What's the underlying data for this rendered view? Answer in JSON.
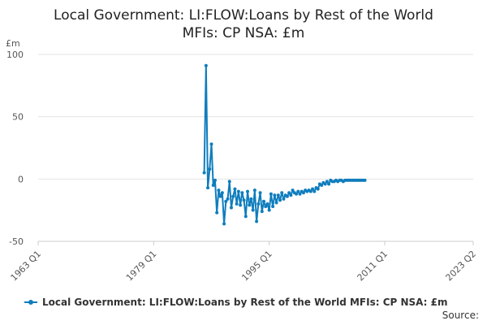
{
  "chart_data": {
    "type": "line",
    "title_lines": [
      "Local Government: LI:FLOW:Loans by Rest of the World",
      "MFIs: CP NSA: £m"
    ],
    "ylabel": "£m",
    "ylim": [
      -50,
      100
    ],
    "yticks": [
      "100",
      "50",
      "0",
      "-50"
    ],
    "xlim": [
      "1963 Q1",
      "2023 Q2"
    ],
    "xticks": [
      "1963 Q1",
      "1979 Q1",
      "1995 Q1",
      "2011 Q1",
      "2023 Q2"
    ],
    "grid": "horizontal",
    "legend_position": "bottom",
    "color": "#0f7dbd",
    "series": [
      {
        "name": "Local Government: LI:FLOW:Loans by Rest of the World MFIs: CP NSA: £m",
        "x": [
          "1986 Q1",
          "1986 Q2",
          "1986 Q3",
          "1986 Q4",
          "1987 Q1",
          "1987 Q2",
          "1987 Q3",
          "1987 Q4",
          "1988 Q1",
          "1988 Q2",
          "1988 Q3",
          "1988 Q4",
          "1989 Q1",
          "1989 Q2",
          "1989 Q3",
          "1989 Q4",
          "1990 Q1",
          "1990 Q2",
          "1990 Q3",
          "1990 Q4",
          "1991 Q1",
          "1991 Q2",
          "1991 Q3",
          "1991 Q4",
          "1992 Q1",
          "1992 Q2",
          "1992 Q3",
          "1992 Q4",
          "1993 Q1",
          "1993 Q2",
          "1993 Q3",
          "1993 Q4",
          "1994 Q1",
          "1994 Q2",
          "1994 Q3",
          "1994 Q4",
          "1995 Q1",
          "1995 Q2",
          "1995 Q3",
          "1995 Q4",
          "1996 Q1",
          "1996 Q2",
          "1996 Q3",
          "1996 Q4",
          "1997 Q1",
          "1997 Q2",
          "1997 Q3",
          "1997 Q4",
          "1998 Q1",
          "1998 Q2",
          "1998 Q3",
          "1998 Q4",
          "1999 Q1",
          "1999 Q2",
          "1999 Q3",
          "1999 Q4",
          "2000 Q1",
          "2000 Q2",
          "2000 Q3",
          "2000 Q4",
          "2001 Q1",
          "2001 Q2",
          "2001 Q3",
          "2001 Q4",
          "2002 Q1",
          "2002 Q2",
          "2002 Q3",
          "2002 Q4",
          "2003 Q1",
          "2003 Q2",
          "2003 Q3",
          "2003 Q4",
          "2004 Q1",
          "2004 Q2",
          "2004 Q3",
          "2004 Q4",
          "2005 Q1",
          "2005 Q2",
          "2005 Q3",
          "2005 Q4",
          "2006 Q1",
          "2006 Q2",
          "2006 Q3",
          "2006 Q4",
          "2007 Q1",
          "2007 Q2",
          "2007 Q3",
          "2007 Q4",
          "2008 Q1",
          "2008 Q2"
        ],
        "values": [
          5,
          91,
          -7,
          8,
          28,
          -5,
          -1,
          -27,
          -9,
          -14,
          -11,
          -36,
          -18,
          -16,
          -2,
          -23,
          -14,
          -8,
          -20,
          -10,
          -21,
          -11,
          -17,
          -30,
          -10,
          -21,
          -16,
          -25,
          -9,
          -34,
          -20,
          -11,
          -26,
          -18,
          -22,
          -20,
          -25,
          -12,
          -22,
          -13,
          -19,
          -13,
          -17,
          -11,
          -16,
          -13,
          -14,
          -11,
          -13,
          -9,
          -11,
          -12,
          -10,
          -12,
          -10,
          -11,
          -9,
          -10,
          -9,
          -10,
          -8,
          -10,
          -7,
          -8,
          -4,
          -5,
          -3,
          -4,
          -2,
          -4,
          -1,
          -2,
          -2,
          -1,
          -2,
          -1,
          -1,
          -2,
          -1,
          -1,
          -1,
          -1,
          -1,
          -1,
          -1,
          -1,
          -1,
          -1,
          -1,
          -1
        ]
      }
    ]
  },
  "source_label": "Source:"
}
